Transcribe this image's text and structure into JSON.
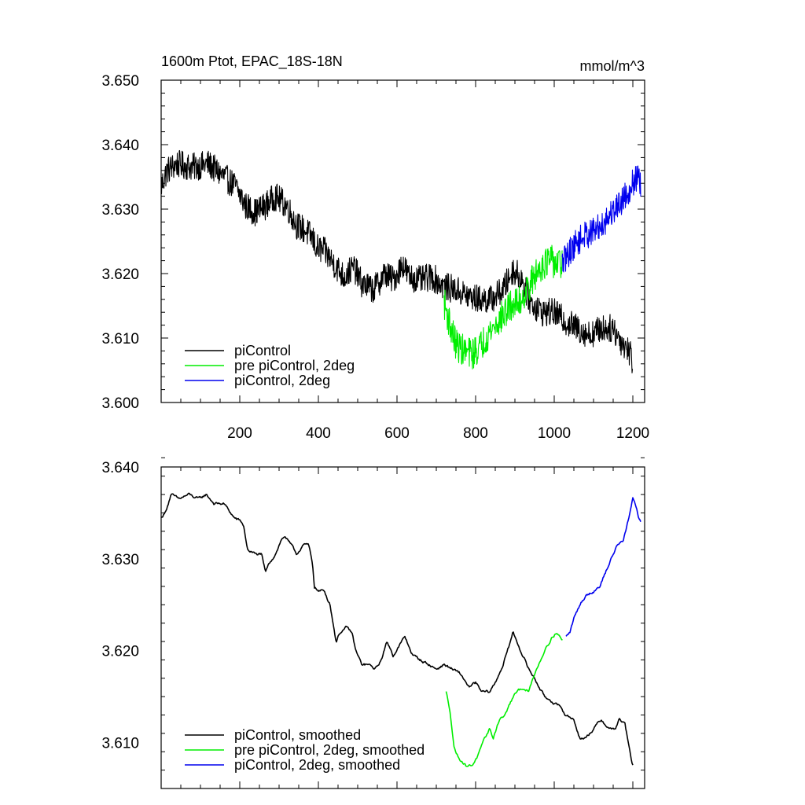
{
  "chart_data": [
    {
      "type": "line",
      "title": "1600m Ptot, EPAC_18S-18N",
      "units": "mmol/m^3",
      "xlim": [
        0,
        1230
      ],
      "ylim": [
        3.6,
        3.65
      ],
      "x_ticks": [
        200,
        400,
        600,
        800,
        1000,
        1200
      ],
      "y_ticks": [
        "3.600",
        "3.610",
        "3.620",
        "3.630",
        "3.640",
        "3.650"
      ],
      "legend_position": "bottom-left",
      "series": [
        {
          "name": "piControl",
          "color": "#000000",
          "noise": 0.0022,
          "points": [
            [
              0,
              3.6335
            ],
            [
              15,
              3.636
            ],
            [
              40,
              3.637
            ],
            [
              80,
              3.6365
            ],
            [
              120,
              3.637
            ],
            [
              150,
              3.6355
            ],
            [
              190,
              3.6335
            ],
            [
              215,
              3.6305
            ],
            [
              240,
              3.6295
            ],
            [
              265,
              3.6305
            ],
            [
              290,
              3.632
            ],
            [
              320,
              3.6305
            ],
            [
              345,
              3.6275
            ],
            [
              370,
              3.6265
            ],
            [
              385,
              3.6255
            ],
            [
              395,
              3.624
            ],
            [
              415,
              3.6235
            ],
            [
              440,
              3.6215
            ],
            [
              465,
              3.6195
            ],
            [
              490,
              3.621
            ],
            [
              510,
              3.6185
            ],
            [
              540,
              3.6175
            ],
            [
              570,
              3.62
            ],
            [
              590,
              3.619
            ],
            [
              615,
              3.6215
            ],
            [
              630,
              3.6195
            ],
            [
              660,
              3.619
            ],
            [
              690,
              3.6195
            ],
            [
              720,
              3.618
            ],
            [
              750,
              3.6175
            ],
            [
              780,
              3.6165
            ],
            [
              810,
              3.616
            ],
            [
              840,
              3.616
            ],
            [
              870,
              3.6175
            ],
            [
              895,
              3.6205
            ],
            [
              915,
              3.6195
            ],
            [
              940,
              3.6155
            ],
            [
              970,
              3.614
            ],
            [
              1000,
              3.614
            ],
            [
              1030,
              3.6125
            ],
            [
              1060,
              3.6115
            ],
            [
              1090,
              3.6105
            ],
            [
              1120,
              3.6115
            ],
            [
              1150,
              3.6115
            ],
            [
              1170,
              3.6095
            ],
            [
              1185,
              3.6085
            ],
            [
              1195,
              3.6075
            ],
            [
              1200,
              3.606
            ]
          ]
        },
        {
          "name": "pre piControl, 2deg",
          "color": "#00ee00",
          "noise": 0.0025,
          "points": [
            [
              720,
              3.6155
            ],
            [
              735,
              3.612
            ],
            [
              750,
              3.609
            ],
            [
              770,
              3.608
            ],
            [
              790,
              3.6075
            ],
            [
              810,
              3.6085
            ],
            [
              830,
              3.6105
            ],
            [
              850,
              3.612
            ],
            [
              870,
              3.6135
            ],
            [
              890,
              3.615
            ],
            [
              910,
              3.6155
            ],
            [
              930,
              3.6175
            ],
            [
              950,
              3.6195
            ],
            [
              970,
              3.6215
            ],
            [
              990,
              3.622
            ],
            [
              1010,
              3.6215
            ],
            [
              1020,
              3.6215
            ]
          ]
        },
        {
          "name": "piControl, 2deg",
          "color": "#0000ee",
          "noise": 0.0022,
          "points": [
            [
              1020,
              3.6215
            ],
            [
              1040,
              3.6235
            ],
            [
              1060,
              3.625
            ],
            [
              1080,
              3.626
            ],
            [
              1100,
              3.6265
            ],
            [
              1120,
              3.6275
            ],
            [
              1140,
              3.629
            ],
            [
              1160,
              3.6305
            ],
            [
              1180,
              3.632
            ],
            [
              1200,
              3.634
            ],
            [
              1210,
              3.635
            ],
            [
              1220,
              3.6335
            ]
          ]
        }
      ]
    },
    {
      "type": "line",
      "title": "",
      "xlim": [
        0,
        1230
      ],
      "ylim": [
        3.605,
        3.64
      ],
      "y_ticks": [
        "3.610",
        "3.620",
        "3.630",
        "3.640"
      ],
      "legend_position": "bottom-left",
      "series": [
        {
          "name": "piControl, smoothed",
          "color": "#000000",
          "noise": 0.0004,
          "points": [
            [
              0,
              3.6345
            ],
            [
              10,
              3.635
            ],
            [
              25,
              3.637
            ],
            [
              45,
              3.6365
            ],
            [
              70,
              3.637
            ],
            [
              95,
              3.6365
            ],
            [
              115,
              3.637
            ],
            [
              135,
              3.636
            ],
            [
              160,
              3.636
            ],
            [
              185,
              3.6345
            ],
            [
              205,
              3.634
            ],
            [
              210,
              3.6335
            ],
            [
              220,
              3.631
            ],
            [
              240,
              3.6305
            ],
            [
              255,
              3.6305
            ],
            [
              265,
              3.6285
            ],
            [
              275,
              3.6295
            ],
            [
              290,
              3.6305
            ],
            [
              305,
              3.632
            ],
            [
              315,
              3.6325
            ],
            [
              330,
              3.6315
            ],
            [
              345,
              3.6305
            ],
            [
              360,
              3.6315
            ],
            [
              375,
              3.6315
            ],
            [
              385,
              3.6295
            ],
            [
              390,
              3.627
            ],
            [
              400,
              3.6265
            ],
            [
              415,
              3.6265
            ],
            [
              430,
              3.625
            ],
            [
              445,
              3.621
            ],
            [
              455,
              3.622
            ],
            [
              470,
              3.6225
            ],
            [
              485,
              3.622
            ],
            [
              495,
              3.62
            ],
            [
              510,
              3.6185
            ],
            [
              525,
              3.6185
            ],
            [
              545,
              3.618
            ],
            [
              560,
              3.619
            ],
            [
              575,
              3.621
            ],
            [
              590,
              3.6195
            ],
            [
              605,
              3.6205
            ],
            [
              620,
              3.6215
            ],
            [
              640,
              3.6195
            ],
            [
              660,
              3.619
            ],
            [
              680,
              3.6185
            ],
            [
              700,
              3.618
            ],
            [
              720,
              3.6185
            ],
            [
              740,
              3.618
            ],
            [
              760,
              3.6175
            ],
            [
              785,
              3.616
            ],
            [
              800,
              3.6165
            ],
            [
              815,
              3.6155
            ],
            [
              835,
              3.6155
            ],
            [
              850,
              3.6165
            ],
            [
              870,
              3.6185
            ],
            [
              885,
              3.6205
            ],
            [
              895,
              3.622
            ],
            [
              905,
              3.621
            ],
            [
              920,
              3.6195
            ],
            [
              935,
              3.618
            ],
            [
              950,
              3.617
            ],
            [
              975,
              3.615
            ],
            [
              995,
              3.6145
            ],
            [
              1010,
              3.614
            ],
            [
              1030,
              3.613
            ],
            [
              1050,
              3.6125
            ],
            [
              1065,
              3.6105
            ],
            [
              1080,
              3.6105
            ],
            [
              1100,
              3.6115
            ],
            [
              1120,
              3.6125
            ],
            [
              1140,
              3.6115
            ],
            [
              1155,
              3.6115
            ],
            [
              1165,
              3.6125
            ],
            [
              1180,
              3.612
            ],
            [
              1190,
              3.6095
            ],
            [
              1197,
              3.608
            ],
            [
              1200,
              3.6075
            ]
          ]
        },
        {
          "name": "pre piControl, 2deg, smoothed",
          "color": "#00ee00",
          "noise": 0.0004,
          "points": [
            [
              725,
              3.6155
            ],
            [
              735,
              3.6135
            ],
            [
              745,
              3.6095
            ],
            [
              755,
              3.6085
            ],
            [
              765,
              3.608
            ],
            [
              775,
              3.6075
            ],
            [
              790,
              3.6075
            ],
            [
              805,
              3.6085
            ],
            [
              820,
              3.61
            ],
            [
              835,
              3.6115
            ],
            [
              845,
              3.6105
            ],
            [
              860,
              3.6125
            ],
            [
              875,
              3.613
            ],
            [
              890,
              3.6145
            ],
            [
              905,
              3.6155
            ],
            [
              920,
              3.616
            ],
            [
              935,
              3.6155
            ],
            [
              950,
              3.6175
            ],
            [
              965,
              3.619
            ],
            [
              980,
              3.6205
            ],
            [
              995,
              3.6215
            ],
            [
              1005,
              3.622
            ],
            [
              1015,
              3.6215
            ],
            [
              1022,
              3.621
            ]
          ]
        },
        {
          "name": "piControl, 2deg, smoothed",
          "color": "#0000ee",
          "noise": 0.0004,
          "points": [
            [
              1030,
              3.6215
            ],
            [
              1040,
              3.622
            ],
            [
              1050,
              3.6235
            ],
            [
              1065,
              3.625
            ],
            [
              1080,
              3.626
            ],
            [
              1100,
              3.6265
            ],
            [
              1115,
              3.627
            ],
            [
              1130,
              3.6285
            ],
            [
              1145,
              3.63
            ],
            [
              1160,
              3.6315
            ],
            [
              1175,
              3.632
            ],
            [
              1190,
              3.6345
            ],
            [
              1200,
              3.6365
            ],
            [
              1210,
              3.6355
            ],
            [
              1215,
              3.6345
            ],
            [
              1220,
              3.634
            ]
          ]
        }
      ]
    }
  ]
}
